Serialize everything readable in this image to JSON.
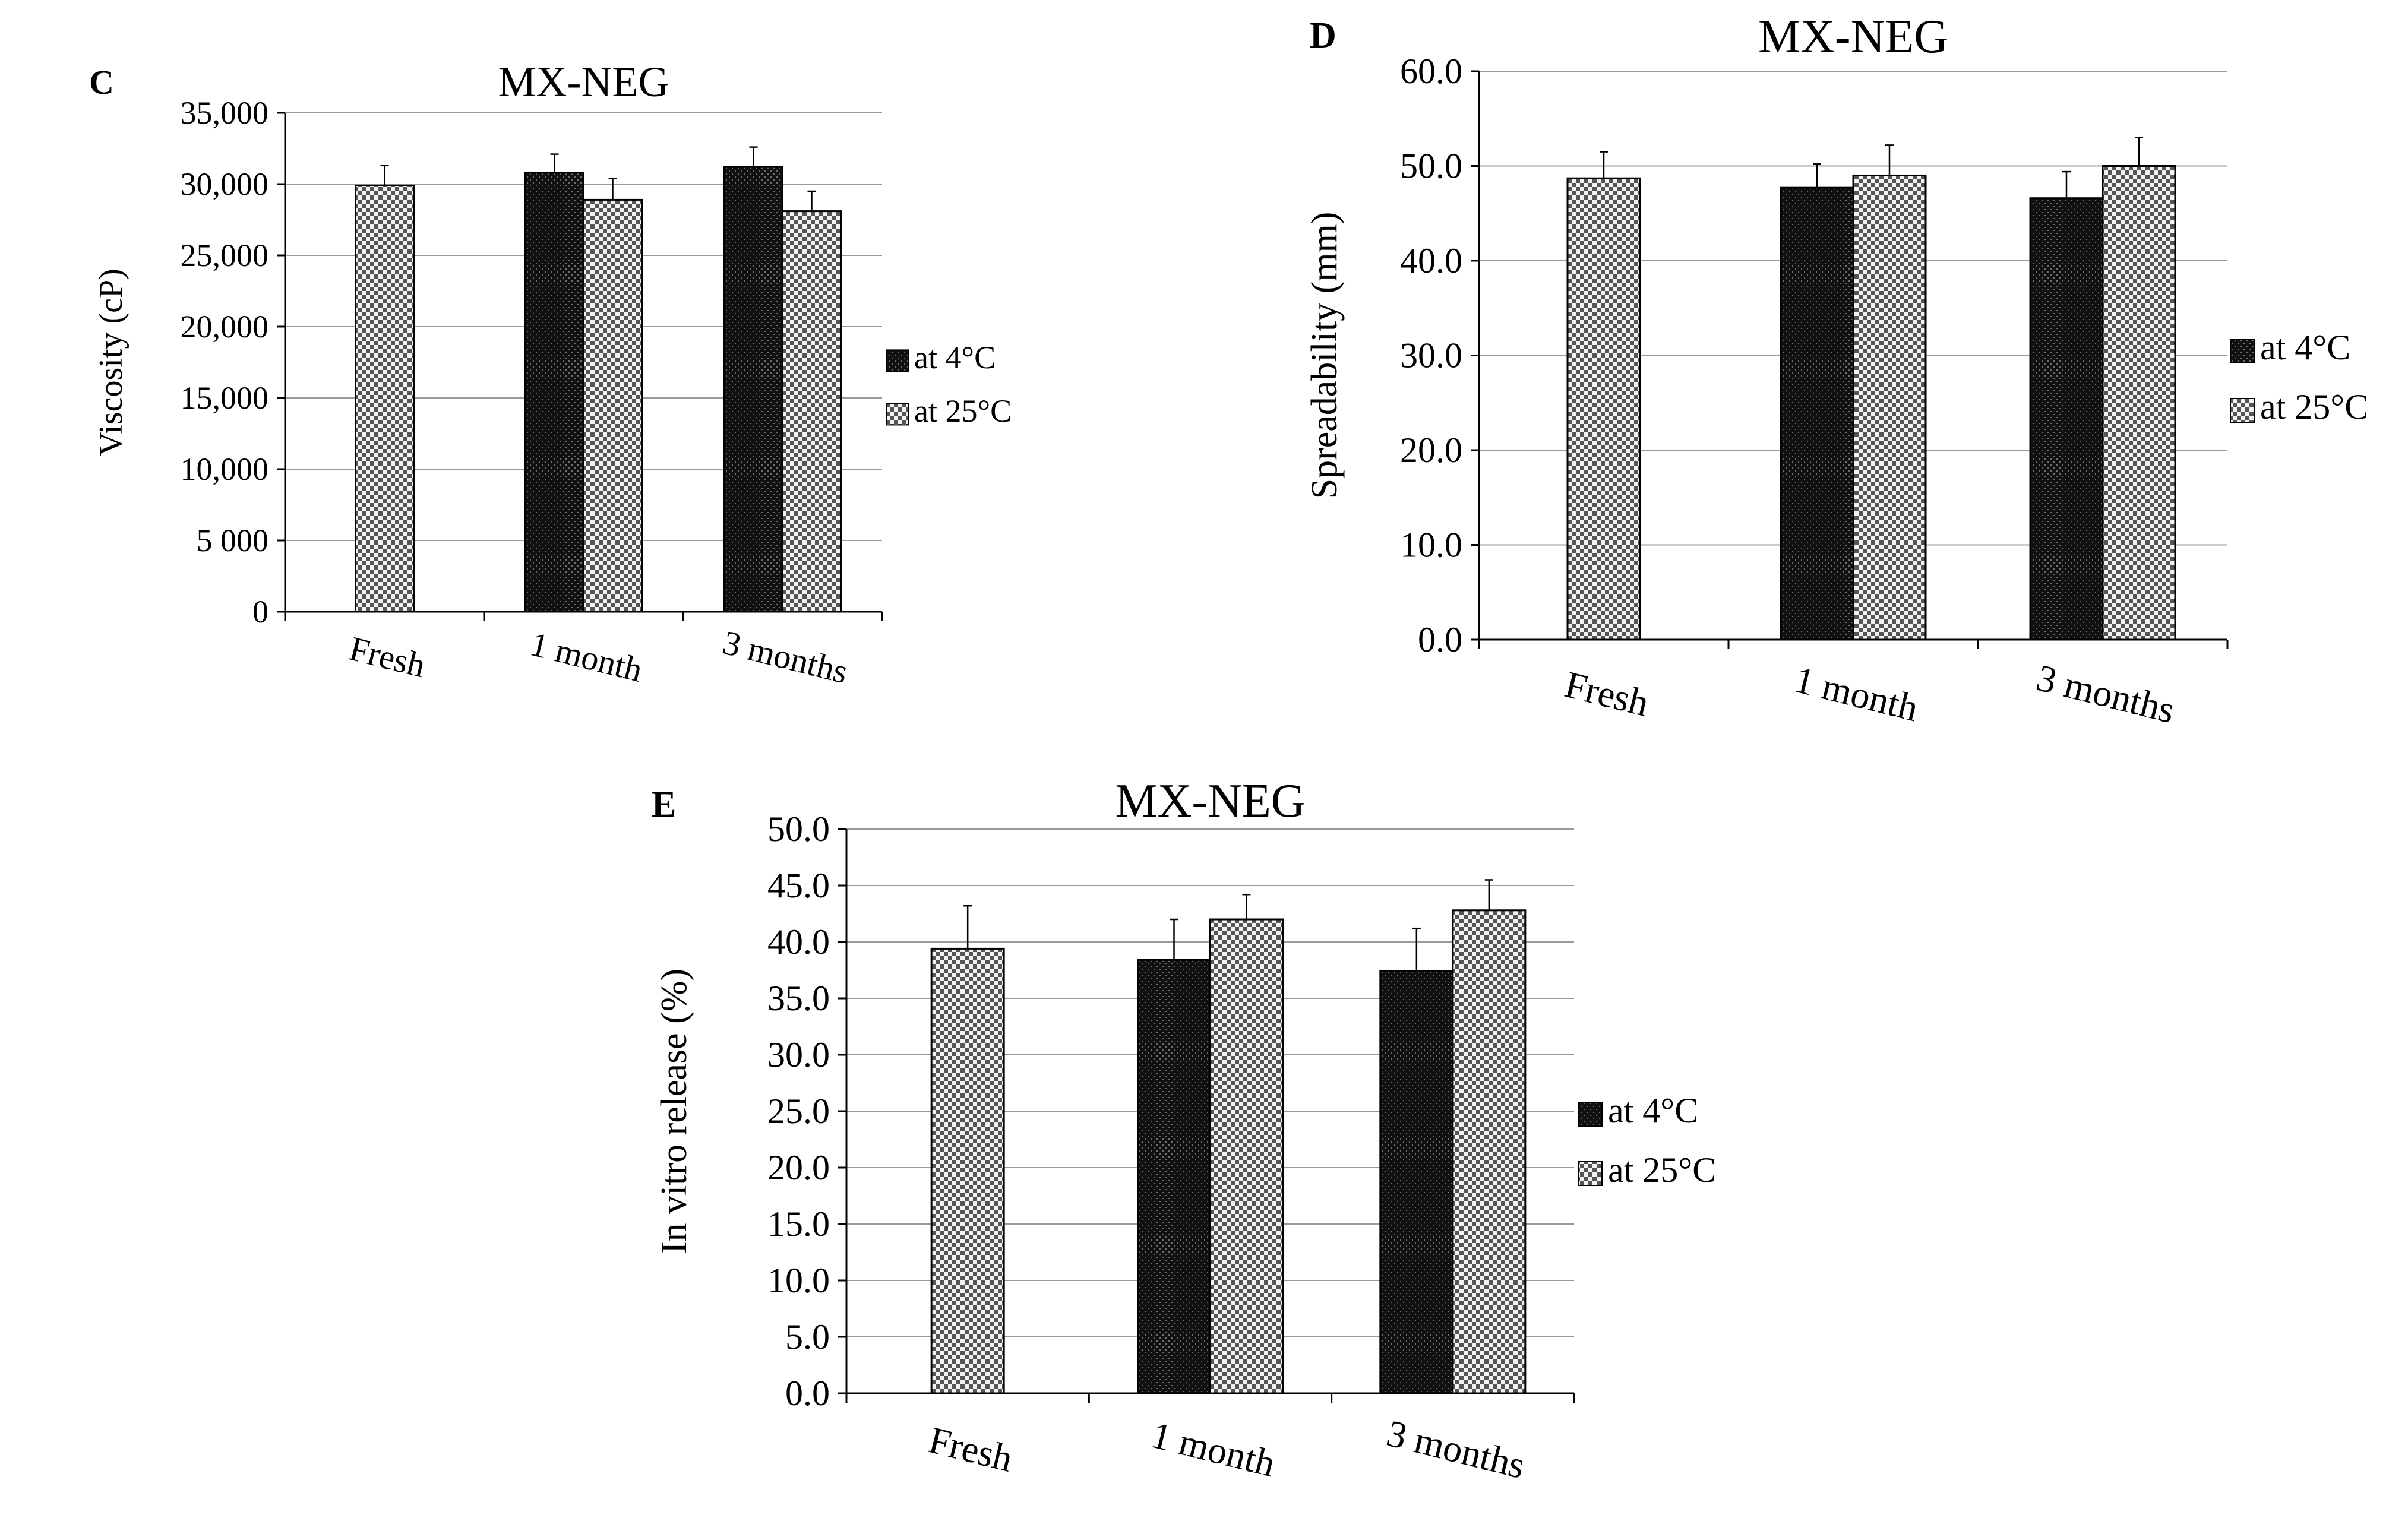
{
  "chart_data": [
    {
      "panel": "C",
      "type": "bar",
      "title": "MX-NEG",
      "xlabel": "",
      "ylabel": "Viscosity (cP)",
      "categories": [
        "Fresh",
        "1 month",
        "3 months"
      ],
      "ylim": [
        0,
        35000
      ],
      "yticks": [
        0,
        5000,
        10000,
        15000,
        20000,
        25000,
        30000,
        35000
      ],
      "ytick_labels": [
        "0",
        "5 000",
        "10,000",
        "15,000",
        "20,000",
        "25,000",
        "30,000",
        "35,000"
      ],
      "grid": true,
      "legend_position": "right",
      "series": [
        {
          "name": "at 4°C",
          "pattern": "dark-dots",
          "values": [
            null,
            30800,
            31200
          ],
          "errors": [
            null,
            1300,
            1400
          ]
        },
        {
          "name": "at 25°C",
          "pattern": "checker",
          "values": [
            29900,
            28900,
            28100
          ],
          "errors": [
            1400,
            1500,
            1400
          ]
        }
      ]
    },
    {
      "panel": "D",
      "type": "bar",
      "title": "MX-NEG",
      "xlabel": "",
      "ylabel": "Spreadability (mm)",
      "categories": [
        "Fresh",
        "1 month",
        "3 months"
      ],
      "ylim": [
        0,
        60
      ],
      "yticks": [
        0,
        10,
        20,
        30,
        40,
        50,
        60
      ],
      "ytick_labels": [
        "0.0",
        "10.0",
        "20.0",
        "30.0",
        "40.0",
        "50.0",
        "60.0"
      ],
      "grid": true,
      "legend_position": "right",
      "series": [
        {
          "name": "at 4°C",
          "pattern": "dark-dots",
          "values": [
            null,
            47.7,
            46.6
          ],
          "errors": [
            null,
            2.5,
            2.8
          ]
        },
        {
          "name": "at 25°C",
          "pattern": "checker",
          "values": [
            48.7,
            49.0,
            50.0
          ],
          "errors": [
            2.8,
            3.2,
            3.0
          ]
        }
      ]
    },
    {
      "panel": "E",
      "type": "bar",
      "title": "MX-NEG",
      "xlabel": "",
      "ylabel": "In vitro release (%)",
      "categories": [
        "Fresh",
        "1 month",
        "3 months"
      ],
      "ylim": [
        0,
        50
      ],
      "yticks": [
        0,
        5,
        10,
        15,
        20,
        25,
        30,
        35,
        40,
        45,
        50
      ],
      "ytick_labels": [
        "0.0",
        "5.0",
        "10.0",
        "15.0",
        "20.0",
        "25.0",
        "30.0",
        "35.0",
        "40.0",
        "45.0",
        "50.0"
      ],
      "grid": true,
      "legend_position": "right",
      "series": [
        {
          "name": "at 4°C",
          "pattern": "dark-dots",
          "values": [
            null,
            38.4,
            37.4
          ],
          "errors": [
            null,
            3.6,
            3.8
          ]
        },
        {
          "name": "at 25°C",
          "pattern": "checker",
          "values": [
            39.4,
            42.0,
            42.8
          ],
          "errors": [
            3.8,
            2.2,
            2.7
          ]
        }
      ]
    }
  ]
}
